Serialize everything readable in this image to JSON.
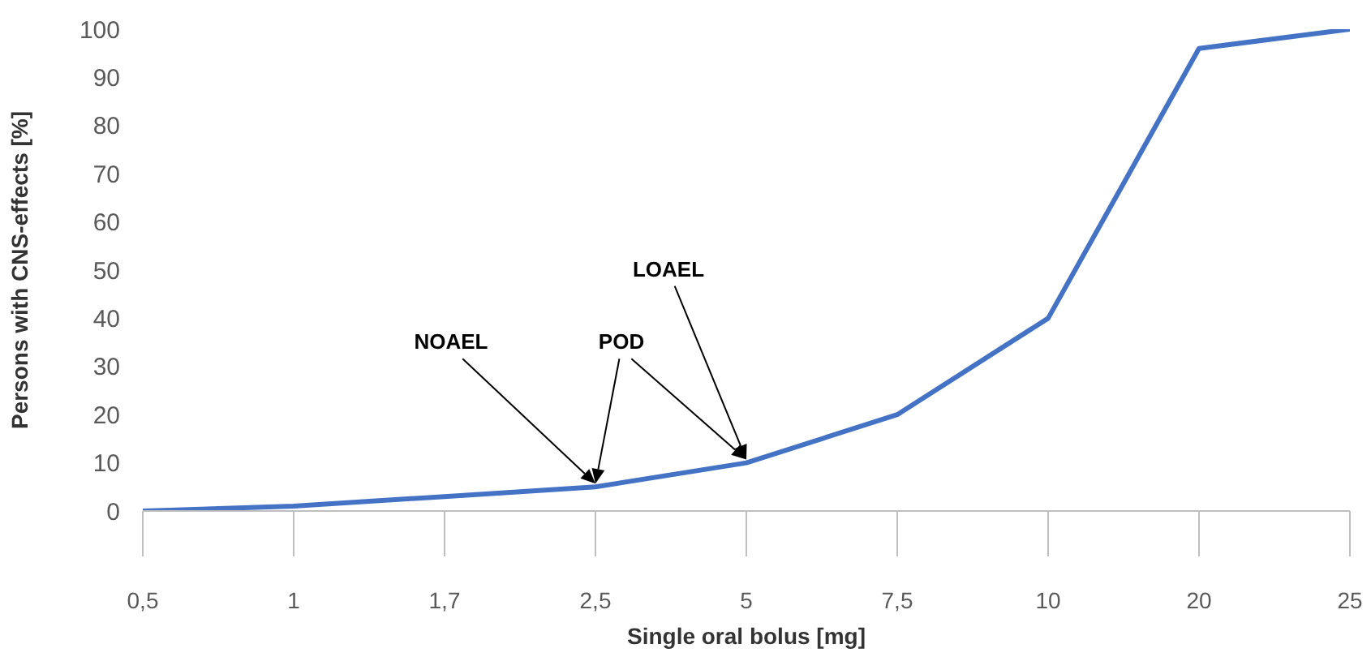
{
  "chart_data": {
    "type": "line",
    "xlabel": "Single oral bolus [mg]",
    "ylabel": "Persons with CNS-effects [%]",
    "categories": [
      "0,5",
      "1",
      "1,7",
      "2,5",
      "5",
      "7,5",
      "10",
      "20",
      "25"
    ],
    "series": [
      {
        "color": "#4472c4",
        "values": [
          0,
          1,
          3,
          5,
          10,
          20,
          40,
          96,
          100
        ]
      }
    ],
    "ylim": [
      0,
      100
    ],
    "yticks": [
      0,
      10,
      20,
      30,
      40,
      50,
      60,
      70,
      80,
      90,
      100
    ],
    "grid": false,
    "legend": false,
    "marker": "none",
    "line_style": "solid",
    "annotations": [
      "NOAEL",
      "POD",
      "LOAEL"
    ]
  }
}
